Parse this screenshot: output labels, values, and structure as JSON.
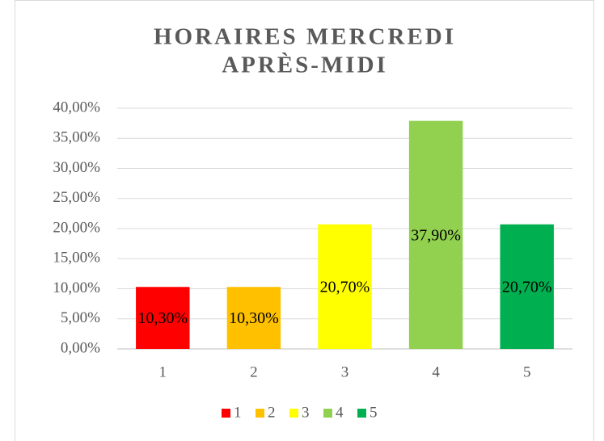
{
  "chart_data": {
    "type": "bar",
    "title": [
      "HORAIRES MERCREDI",
      "APRÈS-MIDI"
    ],
    "categories": [
      "1",
      "2",
      "3",
      "4",
      "5"
    ],
    "values": [
      10.3,
      10.3,
      20.7,
      37.9,
      20.7
    ],
    "value_labels": [
      "10,30%",
      "10,30%",
      "20,70%",
      "37,90%",
      "20,70%"
    ],
    "colors": [
      "#ff0000",
      "#ffc000",
      "#ffff00",
      "#92d050",
      "#00b050"
    ],
    "ylim": [
      0,
      40
    ],
    "yticks": [
      {
        "value": 0,
        "label": "0,00%"
      },
      {
        "value": 5,
        "label": "5,00%"
      },
      {
        "value": 10,
        "label": "10,00%"
      },
      {
        "value": 15,
        "label": "15,00%"
      },
      {
        "value": 20,
        "label": "20,00%"
      },
      {
        "value": 25,
        "label": "25,00%"
      },
      {
        "value": 30,
        "label": "30,00%"
      },
      {
        "value": 35,
        "label": "35,00%"
      },
      {
        "value": 40,
        "label": "40,00%"
      }
    ],
    "grid": true,
    "legend": "bottom"
  }
}
